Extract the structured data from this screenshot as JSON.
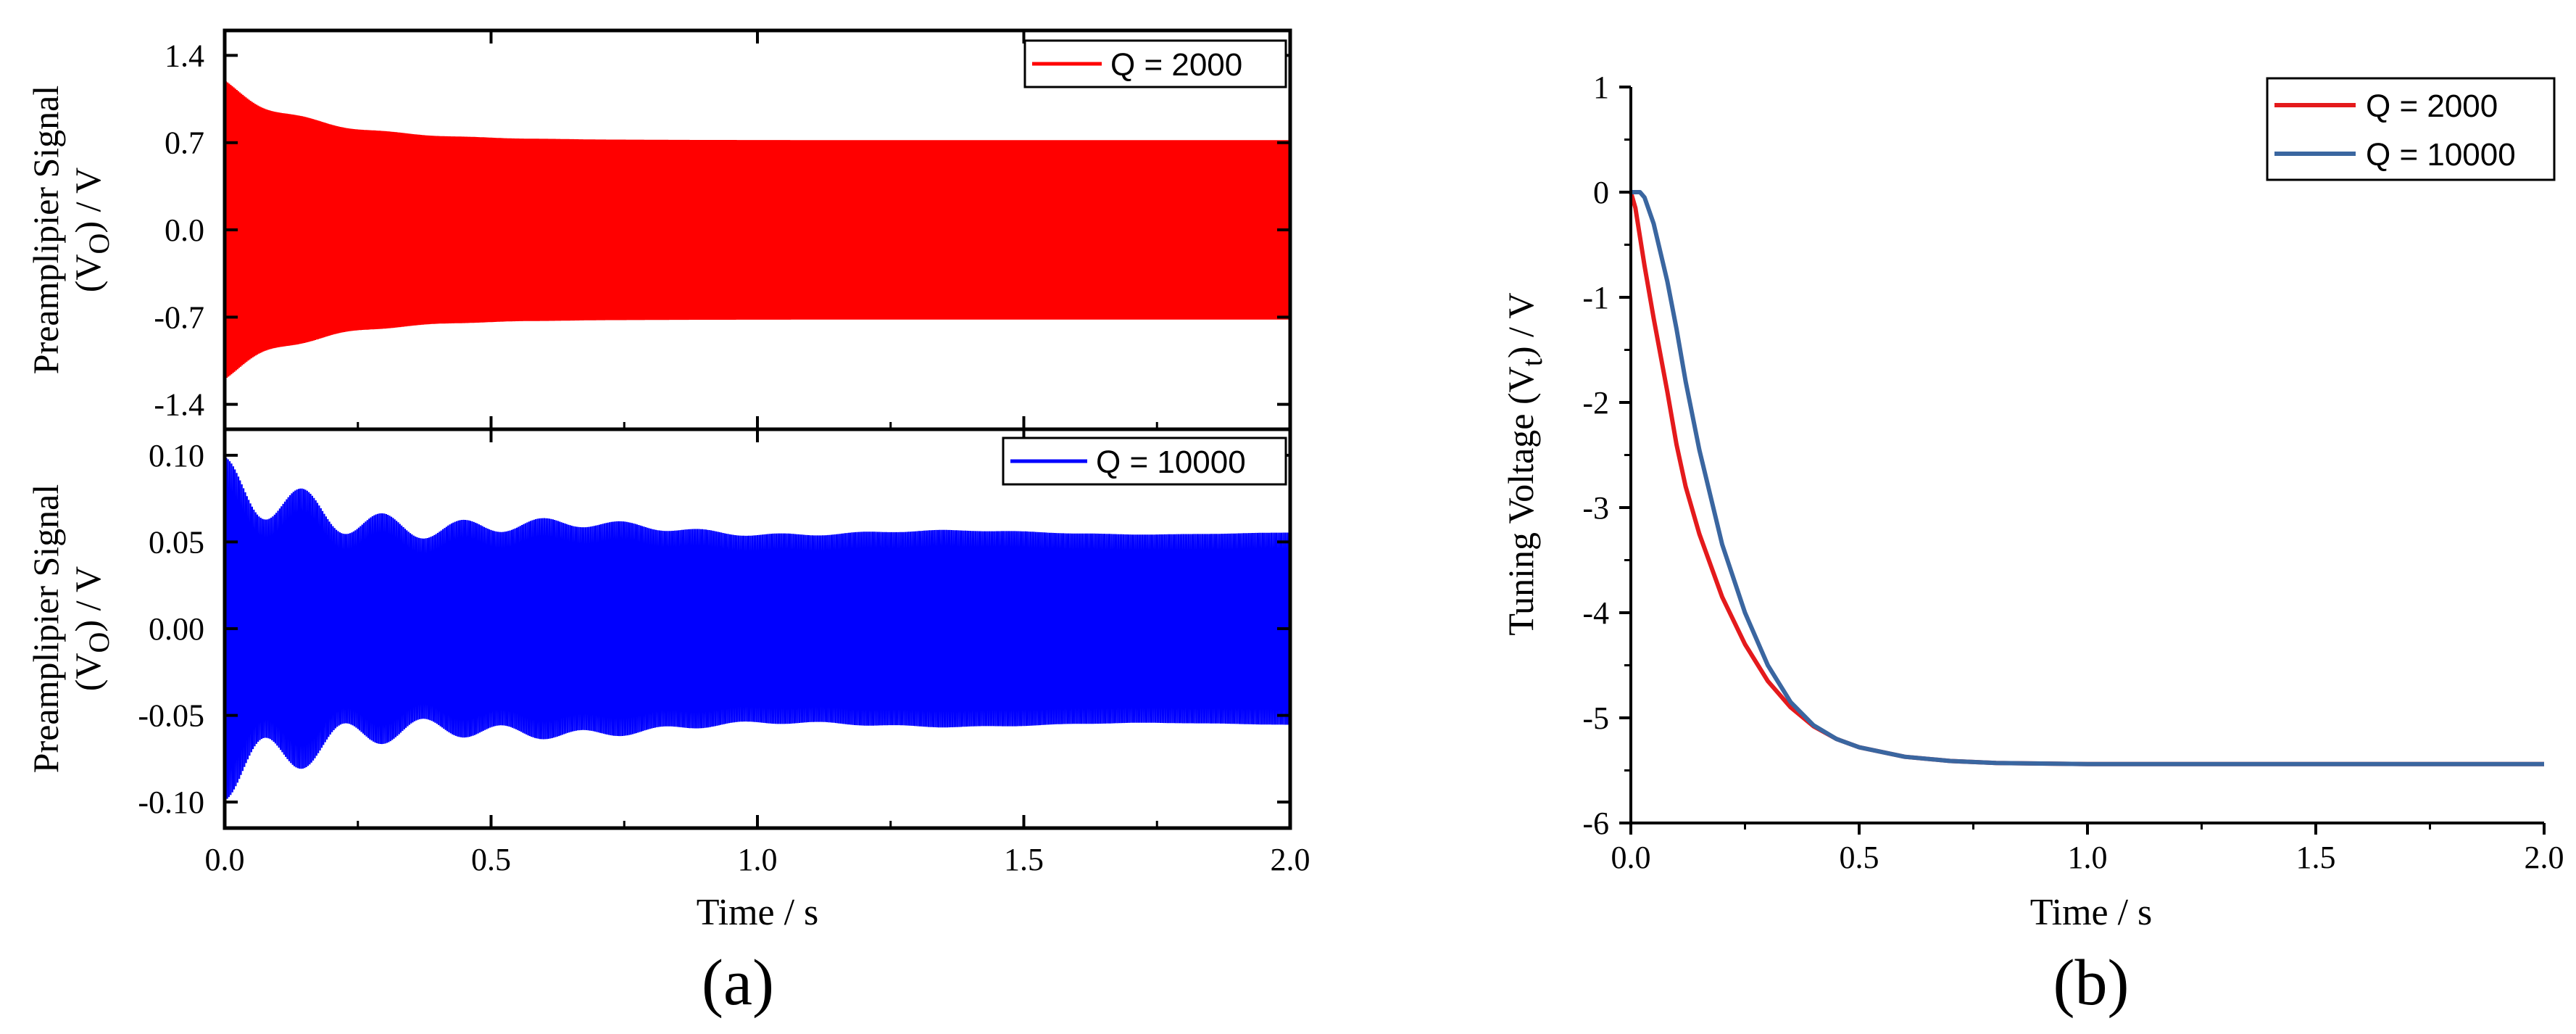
{
  "chart_data": [
    {
      "id": "a_top",
      "type": "line",
      "panel": "(a)",
      "ylabel_main": "Preamplipier Signal",
      "ylabel_prefix": "(V",
      "ylabel_sub": "O",
      "ylabel_suffix": ") / V",
      "xlim": [
        0.0,
        2.0
      ],
      "ylim": [
        -1.6,
        1.6
      ],
      "yticks": [
        1.4,
        0.7,
        0.0,
        -0.7,
        -1.4
      ],
      "ytick_labels": [
        "1.4",
        "0.7",
        "0.0",
        "-0.7",
        "-1.4"
      ],
      "legend": "top-right",
      "series": [
        {
          "name": "Q = 2000",
          "color": "#ff0000",
          "envelope_note": "damped oscillation settling to steady amplitude",
          "initial_amplitude": 1.2,
          "steady_amplitude": 0.72
        }
      ]
    },
    {
      "id": "a_bottom",
      "type": "line",
      "panel": "(a)",
      "ylabel_main": "Preamplipier Signal",
      "ylabel_prefix": "(V",
      "ylabel_sub": "O",
      "ylabel_suffix": ") / V",
      "xlabel": "Time / s",
      "xlim": [
        0.0,
        2.0
      ],
      "ylim": [
        -0.115,
        0.115
      ],
      "xticks": [
        0.0,
        0.5,
        1.0,
        1.5,
        2.0
      ],
      "xtick_labels": [
        "0.0",
        "0.5",
        "1.0",
        "1.5",
        "2.0"
      ],
      "yticks": [
        0.1,
        0.05,
        0.0,
        -0.05,
        -0.1
      ],
      "ytick_labels": [
        "0.10",
        "0.05",
        "0.00",
        "-0.05",
        "-0.10"
      ],
      "legend": "top-right",
      "series": [
        {
          "name": "Q = 10000",
          "color": "#0000ff",
          "envelope_note": "beating oscillation settling to steady amplitude",
          "initial_amplitude": 0.092,
          "steady_amplitude": 0.055
        }
      ]
    },
    {
      "id": "b",
      "type": "line",
      "panel": "(b)",
      "xlabel": "Time / s",
      "ylabel_main": "Tuning Voltage (V",
      "ylabel_sub": "t",
      "ylabel_suffix": ") / V",
      "xlim": [
        0.0,
        2.0
      ],
      "ylim": [
        -6,
        1
      ],
      "xticks": [
        0.0,
        0.5,
        1.0,
        1.5,
        2.0
      ],
      "xtick_labels": [
        "0.0",
        "0.5",
        "1.0",
        "1.5",
        "2.0"
      ],
      "yticks": [
        1,
        0,
        -1,
        -2,
        -3,
        -4,
        -5,
        -6
      ],
      "ytick_labels": [
        "1",
        "0",
        "-1",
        "-2",
        "-3",
        "-4",
        "-5",
        "-6"
      ],
      "legend": "top-right",
      "series": [
        {
          "name": "Q = 2000",
          "color": "#e41a1c",
          "x": [
            0.0,
            0.01,
            0.03,
            0.05,
            0.08,
            0.1,
            0.12,
            0.15,
            0.2,
            0.25,
            0.3,
            0.35,
            0.4,
            0.45,
            0.5,
            0.6,
            0.7,
            0.8,
            1.0,
            1.5,
            2.0
          ],
          "y": [
            0.0,
            -0.15,
            -0.7,
            -1.2,
            -1.9,
            -2.4,
            -2.8,
            -3.25,
            -3.85,
            -4.3,
            -4.65,
            -4.9,
            -5.08,
            -5.2,
            -5.28,
            -5.37,
            -5.41,
            -5.43,
            -5.44,
            -5.44,
            -5.44
          ]
        },
        {
          "name": "Q = 10000",
          "color": "#3a66a0",
          "x": [
            0.0,
            0.02,
            0.03,
            0.05,
            0.08,
            0.1,
            0.12,
            0.15,
            0.2,
            0.25,
            0.3,
            0.35,
            0.4,
            0.45,
            0.5,
            0.6,
            0.7,
            0.8,
            1.0,
            1.5,
            2.0
          ],
          "y": [
            0.0,
            0.0,
            -0.05,
            -0.3,
            -0.85,
            -1.3,
            -1.8,
            -2.45,
            -3.35,
            -4.0,
            -4.5,
            -4.85,
            -5.07,
            -5.2,
            -5.28,
            -5.37,
            -5.41,
            -5.43,
            -5.44,
            -5.44,
            -5.44
          ]
        }
      ]
    }
  ]
}
